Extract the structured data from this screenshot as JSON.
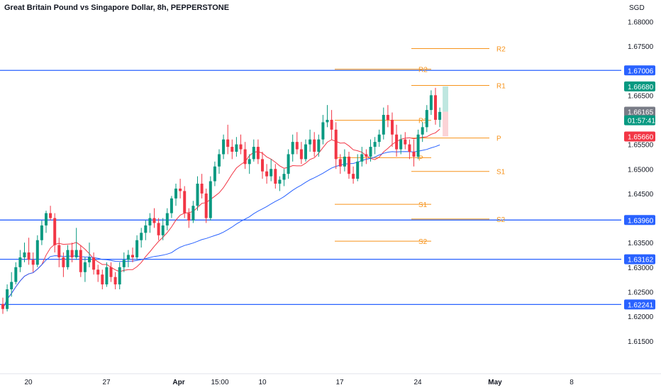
{
  "header": {
    "title": "Great Britain Pound vs Singapore Dollar, 8h, PEPPERSTONE"
  },
  "colors": {
    "up": "#089981",
    "down": "#f23645",
    "hline": "#2962ff",
    "pivot": "#f7931a",
    "ma_fast": "#f23645",
    "ma_slow": "#2962ff",
    "profit_zone": "#bfe7e0",
    "loss_zone": "#fbd3d6"
  },
  "chart_data": {
    "type": "candlestick",
    "symbol": "GBPSGD",
    "timeframe": "8h",
    "currency_label": "SGD",
    "y_ticks": [
      "1.68000",
      "1.67500",
      "1.67000",
      "1.66500",
      "1.66000",
      "1.65500",
      "1.65000",
      "1.64500",
      "1.64000",
      "1.63500",
      "1.63000",
      "1.62500",
      "1.62000",
      "1.61500"
    ],
    "ylim": [
      1.6115,
      1.6815
    ],
    "x_ticks": [
      "20",
      "27",
      "Apr",
      "15:00",
      "10",
      "17",
      "24",
      "May",
      "8"
    ],
    "horizontal_levels": [
      {
        "label": "1.67006",
        "value": 1.67006
      },
      {
        "label": "1.63960",
        "value": 1.6396
      },
      {
        "label": "1.63162",
        "value": 1.63162
      },
      {
        "label": "1.62241",
        "value": 1.62241
      }
    ],
    "pivot_sets": [
      {
        "levels": [
          {
            "name": "R2",
            "value": 1.6703
          },
          {
            "name": "R1",
            "value": 1.6599
          },
          {
            "name": "P",
            "value": 1.6523
          },
          {
            "name": "S1",
            "value": 1.6428
          },
          {
            "name": "S2",
            "value": 1.6353
          }
        ]
      },
      {
        "levels": [
          {
            "name": "R2",
            "value": 1.6745
          },
          {
            "name": "R1",
            "value": 1.667
          },
          {
            "name": "P",
            "value": 1.6563
          },
          {
            "name": "S1",
            "value": 1.6495
          },
          {
            "name": "S2",
            "value": 1.6398
          }
        ]
      }
    ],
    "position": {
      "take_profit": 1.6668,
      "entry": 1.66165,
      "stop_loss": 1.6566,
      "countdown": "01:57:41"
    },
    "price_badges": [
      {
        "label": "1.66680",
        "value": 1.6668,
        "color": "#089981"
      },
      {
        "label": "1.66165",
        "value": 1.66165,
        "color": "#787b86"
      },
      {
        "label": "01:57:41",
        "value": 1.6599,
        "color": "#089981"
      },
      {
        "label": "1.65660",
        "value": 1.6566,
        "color": "#f23645"
      }
    ],
    "candles": [
      [
        1.6225,
        1.6238,
        1.6205,
        1.6215
      ],
      [
        1.6215,
        1.6265,
        1.621,
        1.6255
      ],
      [
        1.6255,
        1.629,
        1.624,
        1.627
      ],
      [
        1.627,
        1.631,
        1.6265,
        1.63
      ],
      [
        1.63,
        1.6335,
        1.629,
        1.632
      ],
      [
        1.632,
        1.635,
        1.631,
        1.633
      ],
      [
        1.633,
        1.636,
        1.6305,
        1.6315
      ],
      [
        1.6315,
        1.633,
        1.629,
        1.6305
      ],
      [
        1.6305,
        1.6365,
        1.63,
        1.6355
      ],
      [
        1.6355,
        1.6395,
        1.6345,
        1.6385
      ],
      [
        1.6385,
        1.6415,
        1.637,
        1.641
      ],
      [
        1.641,
        1.6425,
        1.6395,
        1.64
      ],
      [
        1.64,
        1.641,
        1.633,
        1.6345
      ],
      [
        1.6345,
        1.636,
        1.63,
        1.632
      ],
      [
        1.632,
        1.633,
        1.628,
        1.63
      ],
      [
        1.63,
        1.6345,
        1.6295,
        1.6335
      ],
      [
        1.6335,
        1.635,
        1.631,
        1.632
      ],
      [
        1.632,
        1.638,
        1.6315,
        1.6335
      ],
      [
        1.6335,
        1.6345,
        1.628,
        1.629
      ],
      [
        1.629,
        1.632,
        1.627,
        1.631
      ],
      [
        1.631,
        1.635,
        1.63,
        1.632
      ],
      [
        1.632,
        1.633,
        1.6285,
        1.6295
      ],
      [
        1.6295,
        1.6305,
        1.627,
        1.6285
      ],
      [
        1.6285,
        1.6295,
        1.6255,
        1.6265
      ],
      [
        1.6265,
        1.631,
        1.626,
        1.63
      ],
      [
        1.63,
        1.631,
        1.627,
        1.628
      ],
      [
        1.628,
        1.629,
        1.6255,
        1.6265
      ],
      [
        1.6265,
        1.631,
        1.6255,
        1.63
      ],
      [
        1.63,
        1.633,
        1.629,
        1.6315
      ],
      [
        1.6315,
        1.6335,
        1.63,
        1.6325
      ],
      [
        1.6325,
        1.634,
        1.631,
        1.632
      ],
      [
        1.632,
        1.6365,
        1.6315,
        1.6355
      ],
      [
        1.6355,
        1.638,
        1.634,
        1.637
      ],
      [
        1.637,
        1.6395,
        1.6355,
        1.6385
      ],
      [
        1.6385,
        1.641,
        1.637,
        1.64
      ],
      [
        1.64,
        1.642,
        1.638,
        1.639
      ],
      [
        1.639,
        1.64,
        1.6355,
        1.6365
      ],
      [
        1.6365,
        1.64,
        1.6355,
        1.6385
      ],
      [
        1.6385,
        1.642,
        1.6375,
        1.641
      ],
      [
        1.641,
        1.6445,
        1.64,
        1.644
      ],
      [
        1.644,
        1.647,
        1.6425,
        1.646
      ],
      [
        1.646,
        1.648,
        1.644,
        1.6455
      ],
      [
        1.6455,
        1.6465,
        1.64,
        1.641
      ],
      [
        1.641,
        1.642,
        1.638,
        1.6395
      ],
      [
        1.6395,
        1.6435,
        1.639,
        1.6425
      ],
      [
        1.6425,
        1.6485,
        1.6415,
        1.647
      ],
      [
        1.647,
        1.649,
        1.644,
        1.645
      ],
      [
        1.645,
        1.646,
        1.639,
        1.64
      ],
      [
        1.64,
        1.6485,
        1.6395,
        1.6475
      ],
      [
        1.6475,
        1.6515,
        1.6465,
        1.6505
      ],
      [
        1.6505,
        1.654,
        1.649,
        1.653
      ],
      [
        1.653,
        1.657,
        1.652,
        1.656
      ],
      [
        1.656,
        1.659,
        1.653,
        1.6545
      ],
      [
        1.6545,
        1.656,
        1.652,
        1.6535
      ],
      [
        1.6535,
        1.6565,
        1.6525,
        1.655
      ],
      [
        1.655,
        1.657,
        1.653,
        1.654
      ],
      [
        1.654,
        1.6555,
        1.65,
        1.651
      ],
      [
        1.651,
        1.653,
        1.649,
        1.652
      ],
      [
        1.652,
        1.656,
        1.6515,
        1.6545
      ],
      [
        1.6545,
        1.656,
        1.651,
        1.652
      ],
      [
        1.652,
        1.6535,
        1.648,
        1.6495
      ],
      [
        1.6495,
        1.651,
        1.647,
        1.6485
      ],
      [
        1.6485,
        1.652,
        1.6475,
        1.65
      ],
      [
        1.65,
        1.651,
        1.646,
        1.647
      ],
      [
        1.647,
        1.6485,
        1.6455,
        1.6478
      ],
      [
        1.6478,
        1.65,
        1.6465,
        1.649
      ],
      [
        1.649,
        1.654,
        1.648,
        1.653
      ],
      [
        1.653,
        1.657,
        1.6515,
        1.6555
      ],
      [
        1.6555,
        1.6575,
        1.653,
        1.654
      ],
      [
        1.654,
        1.6555,
        1.651,
        1.652
      ],
      [
        1.652,
        1.656,
        1.6515,
        1.655
      ],
      [
        1.655,
        1.658,
        1.6535,
        1.656
      ],
      [
        1.656,
        1.6575,
        1.6525,
        1.6535
      ],
      [
        1.6535,
        1.657,
        1.6525,
        1.656
      ],
      [
        1.656,
        1.661,
        1.655,
        1.6595
      ],
      [
        1.6595,
        1.663,
        1.6585,
        1.66
      ],
      [
        1.66,
        1.662,
        1.656,
        1.658
      ],
      [
        1.658,
        1.6595,
        1.65,
        1.652
      ],
      [
        1.652,
        1.653,
        1.649,
        1.6505
      ],
      [
        1.6505,
        1.654,
        1.6495,
        1.6525
      ],
      [
        1.6525,
        1.6535,
        1.648,
        1.649
      ],
      [
        1.649,
        1.6505,
        1.647,
        1.648
      ],
      [
        1.648,
        1.653,
        1.6475,
        1.6515
      ],
      [
        1.6515,
        1.6545,
        1.6505,
        1.653
      ],
      [
        1.653,
        1.654,
        1.651,
        1.6525
      ],
      [
        1.6525,
        1.656,
        1.6515,
        1.6545
      ],
      [
        1.6545,
        1.6565,
        1.653,
        1.6555
      ],
      [
        1.6555,
        1.658,
        1.6545,
        1.657
      ],
      [
        1.657,
        1.6625,
        1.656,
        1.661
      ],
      [
        1.661,
        1.663,
        1.6585,
        1.66
      ],
      [
        1.66,
        1.6615,
        1.6545,
        1.657
      ],
      [
        1.657,
        1.659,
        1.6525,
        1.654
      ],
      [
        1.654,
        1.657,
        1.653,
        1.656
      ],
      [
        1.656,
        1.6575,
        1.654,
        1.655
      ],
      [
        1.655,
        1.656,
        1.652,
        1.6535
      ],
      [
        1.6535,
        1.656,
        1.6505,
        1.6525
      ],
      [
        1.6525,
        1.658,
        1.652,
        1.657
      ],
      [
        1.657,
        1.6595,
        1.6555,
        1.6585
      ],
      [
        1.6585,
        1.663,
        1.6575,
        1.662
      ],
      [
        1.662,
        1.666,
        1.661,
        1.665
      ],
      [
        1.665,
        1.6665,
        1.659,
        1.66
      ],
      [
        1.66,
        1.6625,
        1.6585,
        1.6616
      ]
    ]
  }
}
